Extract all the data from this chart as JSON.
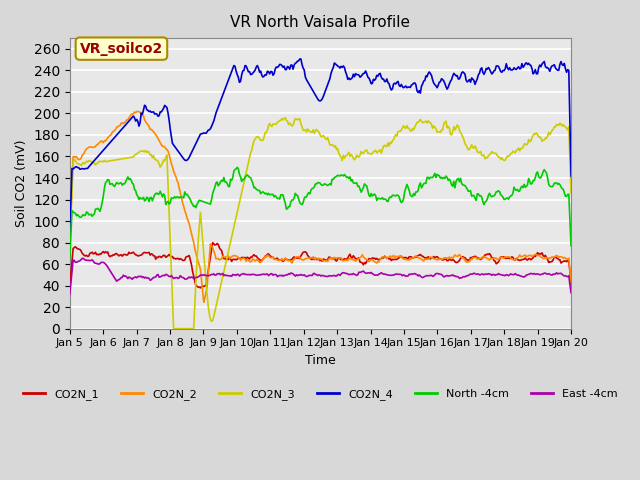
{
  "title": "VR North Vaisala Profile",
  "xlabel": "Time",
  "ylabel": "Soil CO2 (mV)",
  "ylim": [
    0,
    270
  ],
  "yticks": [
    0,
    20,
    40,
    60,
    80,
    100,
    120,
    140,
    160,
    180,
    200,
    220,
    240,
    260
  ],
  "annotation": "VR_soilco2",
  "annotation_color": "#990000",
  "annotation_bg": "#ffffcc",
  "colors": {
    "CO2N_1": "#cc0000",
    "CO2N_2": "#ff8800",
    "CO2N_3": "#cccc00",
    "CO2N_4": "#0000cc",
    "North_4cm": "#00cc00",
    "East_4cm": "#aa00aa"
  },
  "legend_labels": [
    "CO2N_1",
    "CO2N_2",
    "CO2N_3",
    "CO2N_4",
    "North -4cm",
    "East -4cm"
  ],
  "x_tick_labels": [
    "Jan 5",
    "Jan 6",
    "Jan 7",
    "Jan 8",
    "Jan 9",
    "Jan 10",
    "Jan 11",
    "Jan 12",
    "Jan 13",
    "Jan 14",
    "Jan 15",
    "Jan 16",
    "Jan 17",
    "Jan 18",
    "Jan 19",
    "Jan 20"
  ],
  "n_points": 450
}
